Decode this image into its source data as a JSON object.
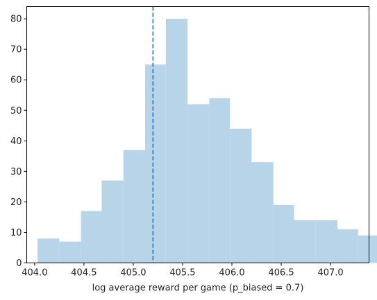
{
  "chart_data": {
    "type": "bar",
    "title": "",
    "xlabel": "log average reward per game (p_biased = 0.7)",
    "ylabel": "",
    "xlim": [
      403.92,
      407.39
    ],
    "ylim": [
      0,
      84
    ],
    "grid": false,
    "bar_color": "#b8d4e8",
    "marker_color": "#1f77b4",
    "bins": [
      {
        "x0": 404.03,
        "x1": 404.25,
        "count": 8
      },
      {
        "x0": 404.25,
        "x1": 404.47,
        "count": 7
      },
      {
        "x0": 404.47,
        "x1": 404.68,
        "count": 17
      },
      {
        "x0": 404.68,
        "x1": 404.9,
        "count": 27
      },
      {
        "x0": 404.9,
        "x1": 405.12,
        "count": 37
      },
      {
        "x0": 405.12,
        "x1": 405.33,
        "count": 65
      },
      {
        "x0": 405.33,
        "x1": 405.55,
        "count": 80
      },
      {
        "x0": 405.55,
        "x1": 405.77,
        "count": 52
      },
      {
        "x0": 405.77,
        "x1": 405.98,
        "count": 54
      },
      {
        "x0": 405.98,
        "x1": 406.2,
        "count": 44
      },
      {
        "x0": 406.2,
        "x1": 406.42,
        "count": 33
      },
      {
        "x0": 406.42,
        "x1": 406.63,
        "count": 19
      },
      {
        "x0": 406.63,
        "x1": 406.85,
        "count": 14
      },
      {
        "x0": 406.85,
        "x1": 407.07,
        "count": 14
      },
      {
        "x0": 407.07,
        "x1": 407.28,
        "count": 11
      },
      {
        "x0": 407.28,
        "x1": 407.5,
        "count": 9
      }
    ],
    "vline_x": 405.2,
    "xticks": [
      404.0,
      404.5,
      405.0,
      405.5,
      406.0,
      406.5,
      407.0
    ],
    "xtick_labels": [
      "404.0",
      "404.5",
      "405.0",
      "405.5",
      "406.0",
      "406.5",
      "407.0"
    ],
    "yticks": [
      0,
      10,
      20,
      30,
      40,
      50,
      60,
      70,
      80
    ],
    "ytick_labels": [
      "0",
      "10",
      "20",
      "30",
      "40",
      "50",
      "60",
      "70",
      "80"
    ]
  }
}
